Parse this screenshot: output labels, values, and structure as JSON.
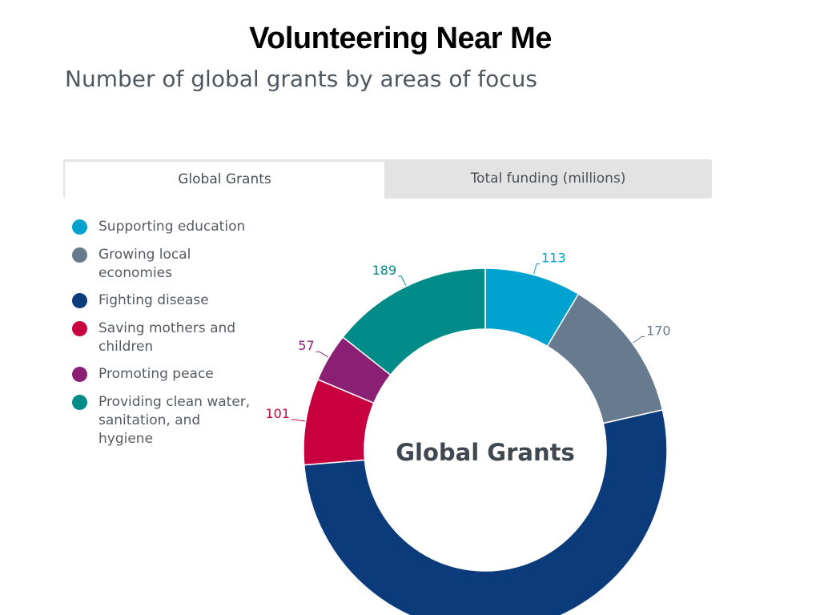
{
  "slide": {
    "title": "Volunteering Near Me"
  },
  "chart_header": {
    "title": "Number of global grants by areas of focus"
  },
  "tabs": [
    {
      "label": "Global Grants",
      "active": true
    },
    {
      "label": "Total funding (millions)",
      "active": false
    }
  ],
  "chart_data": {
    "type": "pie",
    "variant": "donut",
    "title": "Number of global grants by areas of focus",
    "center_label": "Global Grants",
    "legend_position": "left",
    "categories": [
      "Supporting education",
      "Growing local economies",
      "Fighting disease",
      "Saving mothers and children",
      "Promoting peace",
      "Providing clean water, sanitation, and hygiene"
    ],
    "values": [
      113,
      170,
      689,
      101,
      57,
      189
    ],
    "data_labels": [
      "113",
      "170",
      "",
      "101",
      "57",
      "189"
    ],
    "colors": [
      "#00a2d0",
      "#677b8e",
      "#0c3b7c",
      "#c8003f",
      "#8a1f73",
      "#018c8a"
    ]
  }
}
